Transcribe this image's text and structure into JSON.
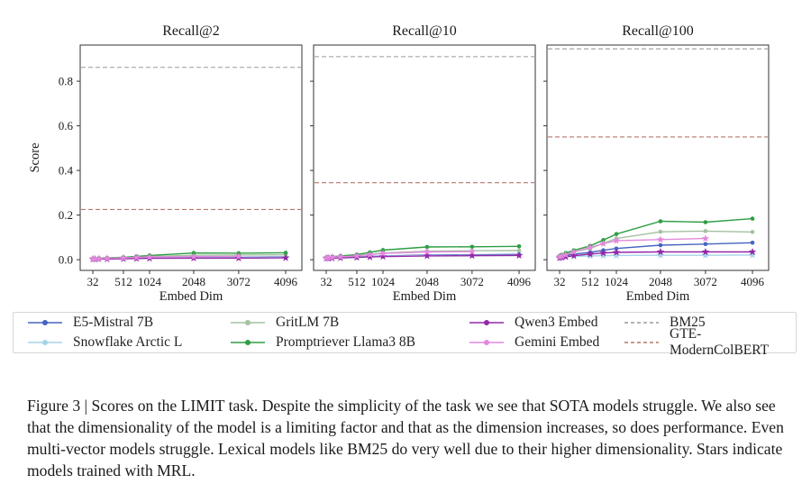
{
  "figure": {
    "caption": "Figure 3 | Scores on the LIMIT task. Despite the simplicity of the task we see that SOTA models struggle. We also see that the dimensionality of the model is a limiting factor and that as the dimension increases, so does performance. Even multi-vector models struggle. Lexical models like BM25 do very well due to their higher dimensionality. Stars indicate models trained with MRL.",
    "xlabel": "Embed Dim",
    "ylabel": "Score",
    "yticks": [
      "0.0",
      "0.2",
      "0.4",
      "0.6",
      "0.8"
    ],
    "xticks": [
      32,
      512,
      1024,
      2048,
      3072,
      4096
    ]
  },
  "colors": {
    "e5_mistral": "#4365c0",
    "snowflake": "#a6d3e8",
    "gritlm": "#a3c2a0",
    "promptriever": "#2e9e44",
    "qwen3": "#9428a8",
    "gemini": "#e289dd",
    "bm25": "#9a9a9a",
    "gte_moderncolbert": "#b5766a",
    "plot_border": "#333333",
    "text": "#1a1a1a"
  },
  "legend": {
    "entries": [
      {
        "label": "E5-Mistral 7B",
        "color": "#4365c0",
        "line": "solid",
        "marker": "dot"
      },
      {
        "label": "GritLM 7B",
        "color": "#a3c2a0",
        "line": "solid",
        "marker": "dot"
      },
      {
        "label": "Qwen3 Embed",
        "color": "#9428a8",
        "line": "solid",
        "marker": "dot"
      },
      {
        "label": "BM25",
        "color": "#9a9a9a",
        "line": "dashed",
        "marker": "none"
      },
      {
        "label": "Snowflake Arctic L",
        "color": "#a6d3e8",
        "line": "solid",
        "marker": "dot"
      },
      {
        "label": "Promptriever Llama3 8B",
        "color": "#2e9e44",
        "line": "solid",
        "marker": "dot"
      },
      {
        "label": "Gemini Embed",
        "color": "#e289dd",
        "line": "solid",
        "marker": "dot"
      },
      {
        "label": "GTE-ModernColBERT",
        "color": "#b5766a",
        "line": "dashed",
        "marker": "none"
      }
    ]
  },
  "chart_data": [
    {
      "type": "line",
      "title": "Recall@2",
      "xlabel": "Embed Dim",
      "ylabel": "Score",
      "ylim": [
        -0.048,
        0.962
      ],
      "xticks": [
        32,
        512,
        1024,
        2048,
        3072,
        4096
      ],
      "yticks": [
        0.0,
        0.2,
        0.4,
        0.6,
        0.8
      ],
      "show_yticklabels": true,
      "x": [
        32,
        64,
        128,
        256,
        512,
        768,
        1024,
        2048,
        3072,
        4096
      ],
      "series": [
        {
          "name": "E5-Mistral 7B",
          "color": "#4365c0",
          "marker": "circle",
          "values": [
            0.004,
            0.004,
            0.005,
            0.005,
            0.006,
            0.007,
            0.008,
            0.01,
            0.011,
            0.012
          ]
        },
        {
          "name": "Snowflake Arctic L",
          "color": "#a6d3e8",
          "marker": "star",
          "values": [
            0.004,
            0.004,
            0.004,
            0.005,
            0.006,
            0.007,
            0.008,
            0.009,
            0.009,
            0.01
          ]
        },
        {
          "name": "GritLM 7B",
          "color": "#a3c2a0",
          "marker": "circle",
          "values": [
            0.005,
            0.005,
            0.006,
            0.007,
            0.009,
            0.012,
            0.015,
            0.02,
            0.021,
            0.022
          ]
        },
        {
          "name": "Promptriever Llama3 8B",
          "color": "#2e9e44",
          "marker": "circle",
          "values": [
            0.005,
            0.006,
            0.007,
            0.008,
            0.011,
            0.015,
            0.019,
            0.03,
            0.029,
            0.031
          ]
        },
        {
          "name": "Qwen3 Embed",
          "color": "#9428a8",
          "marker": "star",
          "values": [
            0.002,
            0.002,
            0.003,
            0.003,
            0.004,
            0.005,
            0.006,
            0.007,
            0.007,
            0.008
          ]
        },
        {
          "name": "Gemini Embed",
          "color": "#e289dd",
          "marker": "star",
          "x": [
            32,
            64,
            128,
            256,
            512,
            768,
            1024,
            2048,
            3072
          ],
          "values": [
            0.004,
            0.004,
            0.005,
            0.006,
            0.008,
            0.01,
            0.012,
            0.014,
            0.015
          ]
        }
      ],
      "hlines": [
        {
          "name": "BM25",
          "value": 0.862,
          "color": "#9a9a9a",
          "style": "dashed"
        },
        {
          "name": "GTE-ModernColBERT",
          "value": 0.225,
          "color": "#b5766a",
          "style": "dashed"
        }
      ]
    },
    {
      "type": "line",
      "title": "Recall@10",
      "xlabel": "Embed Dim",
      "ylabel": "",
      "ylim": [
        -0.048,
        0.962
      ],
      "xticks": [
        32,
        512,
        1024,
        2048,
        3072,
        4096
      ],
      "yticks": [
        0.0,
        0.2,
        0.4,
        0.6,
        0.8
      ],
      "show_yticklabels": false,
      "x": [
        32,
        64,
        128,
        256,
        512,
        768,
        1024,
        2048,
        3072,
        4096
      ],
      "series": [
        {
          "name": "E5-Mistral 7B",
          "color": "#4365c0",
          "marker": "circle",
          "values": [
            0.008,
            0.009,
            0.01,
            0.011,
            0.013,
            0.015,
            0.017,
            0.021,
            0.022,
            0.024
          ]
        },
        {
          "name": "Snowflake Arctic L",
          "color": "#a6d3e8",
          "marker": "star",
          "values": [
            0.007,
            0.008,
            0.009,
            0.01,
            0.012,
            0.014,
            0.016,
            0.019,
            0.019,
            0.02
          ]
        },
        {
          "name": "GritLM 7B",
          "color": "#a3c2a0",
          "marker": "circle",
          "values": [
            0.01,
            0.011,
            0.012,
            0.014,
            0.018,
            0.024,
            0.03,
            0.038,
            0.04,
            0.041
          ]
        },
        {
          "name": "Promptriever Llama3 8B",
          "color": "#2e9e44",
          "marker": "circle",
          "values": [
            0.01,
            0.012,
            0.014,
            0.017,
            0.023,
            0.033,
            0.043,
            0.057,
            0.058,
            0.06
          ]
        },
        {
          "name": "Qwen3 Embed",
          "color": "#9428a8",
          "marker": "star",
          "values": [
            0.006,
            0.006,
            0.007,
            0.008,
            0.01,
            0.012,
            0.014,
            0.017,
            0.018,
            0.019
          ]
        },
        {
          "name": "Gemini Embed",
          "color": "#e289dd",
          "marker": "star",
          "x": [
            32,
            64,
            128,
            256,
            512,
            768,
            1024,
            2048,
            3072
          ],
          "values": [
            0.008,
            0.009,
            0.011,
            0.013,
            0.017,
            0.023,
            0.028,
            0.035,
            0.036
          ]
        }
      ],
      "hlines": [
        {
          "name": "BM25",
          "value": 0.91,
          "color": "#9a9a9a",
          "style": "dashed"
        },
        {
          "name": "GTE-ModernColBERT",
          "value": 0.345,
          "color": "#b5766a",
          "style": "dashed"
        }
      ]
    },
    {
      "type": "line",
      "title": "Recall@100",
      "xlabel": "Embed Dim",
      "ylabel": "",
      "ylim": [
        -0.048,
        0.962
      ],
      "xticks": [
        32,
        512,
        1024,
        2048,
        3072,
        4096
      ],
      "yticks": [
        0.0,
        0.2,
        0.4,
        0.6,
        0.8
      ],
      "show_yticklabels": false,
      "x": [
        32,
        64,
        128,
        256,
        512,
        768,
        1024,
        2048,
        3072,
        4096
      ],
      "series": [
        {
          "name": "E5-Mistral 7B",
          "color": "#4365c0",
          "marker": "circle",
          "values": [
            0.015,
            0.017,
            0.02,
            0.025,
            0.033,
            0.042,
            0.05,
            0.065,
            0.07,
            0.076
          ]
        },
        {
          "name": "Snowflake Arctic L",
          "color": "#a6d3e8",
          "marker": "star",
          "values": [
            0.01,
            0.011,
            0.013,
            0.015,
            0.017,
            0.018,
            0.019,
            0.02,
            0.02,
            0.021
          ]
        },
        {
          "name": "GritLM 7B",
          "color": "#a3c2a0",
          "marker": "circle",
          "values": [
            0.016,
            0.02,
            0.026,
            0.035,
            0.05,
            0.073,
            0.095,
            0.125,
            0.128,
            0.124
          ]
        },
        {
          "name": "Promptriever Llama3 8B",
          "color": "#2e9e44",
          "marker": "circle",
          "values": [
            0.017,
            0.022,
            0.03,
            0.042,
            0.062,
            0.088,
            0.115,
            0.172,
            0.168,
            0.184
          ]
        },
        {
          "name": "Qwen3 Embed",
          "color": "#9428a8",
          "marker": "star",
          "values": [
            0.008,
            0.01,
            0.013,
            0.018,
            0.025,
            0.03,
            0.033,
            0.035,
            0.035,
            0.035
          ]
        },
        {
          "name": "Gemini Embed",
          "color": "#e289dd",
          "marker": "star",
          "x": [
            32,
            64,
            128,
            256,
            512,
            768,
            1024,
            2048,
            3072
          ],
          "values": [
            0.013,
            0.016,
            0.022,
            0.035,
            0.055,
            0.072,
            0.085,
            0.09,
            0.095
          ]
        }
      ],
      "hlines": [
        {
          "name": "BM25",
          "value": 0.945,
          "color": "#9a9a9a",
          "style": "dashed"
        },
        {
          "name": "GTE-ModernColBERT",
          "value": 0.55,
          "color": "#b5766a",
          "style": "dashed"
        }
      ]
    }
  ]
}
